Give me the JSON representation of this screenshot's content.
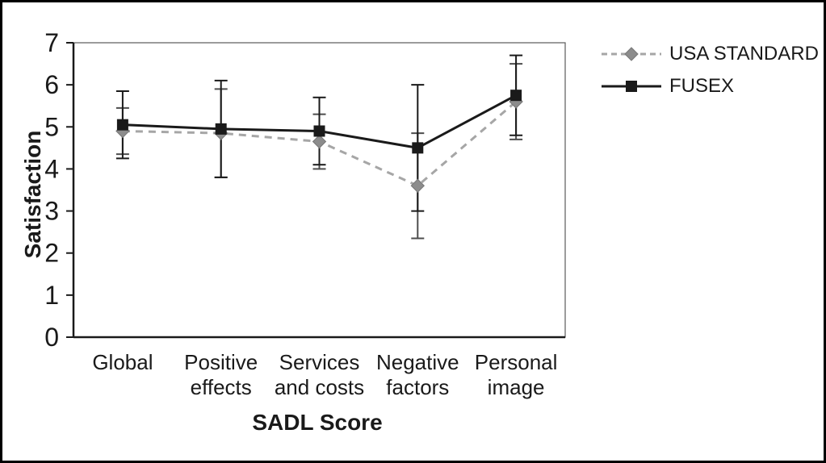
{
  "chart_data": {
    "type": "line",
    "title": "",
    "xlabel": "SADL Score",
    "ylabel": "Satisfaction",
    "ylim": [
      0,
      7
    ],
    "ytick_step": 1,
    "grid": false,
    "legend_position": "top-right-outside",
    "categories": [
      "Global",
      "Positive effects",
      "Services and costs",
      "Negative factors",
      "Personal image"
    ],
    "category_labels_wrapped": [
      [
        "Global"
      ],
      [
        "Positive",
        "effects"
      ],
      [
        "Services",
        "and costs"
      ],
      [
        "Negative",
        "factors"
      ],
      [
        "Personal",
        "image"
      ]
    ],
    "series": [
      {
        "name": "USA STANDARD",
        "values": [
          4.9,
          4.85,
          4.65,
          3.6,
          5.6
        ],
        "errors": [
          0.55,
          1.05,
          0.65,
          1.25,
          0.9
        ],
        "color": "#a6a6a6",
        "marker_color": "#8c8c8c",
        "error_color": "#4d4d4d",
        "line_style": "dashed",
        "marker": "diamond"
      },
      {
        "name": "FUSEX",
        "values": [
          5.05,
          4.95,
          4.9,
          4.5,
          5.75
        ],
        "errors": [
          0.8,
          1.15,
          0.8,
          1.5,
          0.95
        ],
        "color": "#1a1a1a",
        "marker_color": "#1a1a1a",
        "error_color": "#1a1a1a",
        "line_style": "solid",
        "marker": "square"
      }
    ],
    "axis_color": "#1a1a1a",
    "plot_border_color": "#595959"
  }
}
